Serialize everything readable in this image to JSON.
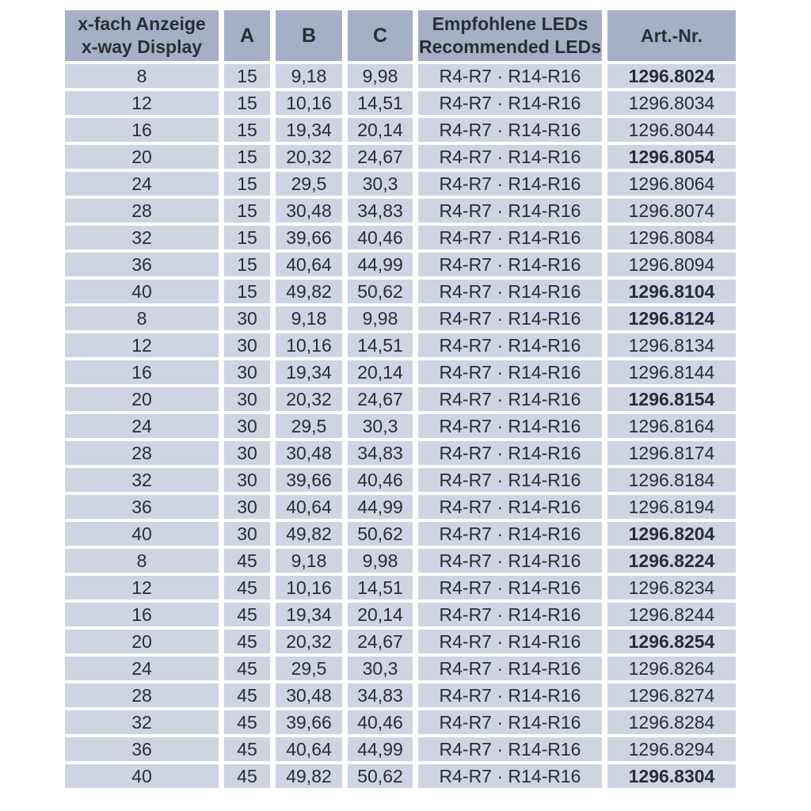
{
  "colors": {
    "page_bg": "#ffffff",
    "header_bg": "#a5b0c7",
    "row_bg": "#ced4e2",
    "text": "#2a2d35"
  },
  "table": {
    "header": {
      "col1_line1": "x-fach Anzeige",
      "col1_line2": "x-way Display",
      "col2": "A",
      "col3": "B",
      "col4": "C",
      "col5_line1": "Empfohlene LEDs",
      "col5_line2": "Recommended LEDs",
      "col6": "Art.-Nr."
    },
    "rows": [
      {
        "x": "8",
        "a": "15",
        "b": "9,18",
        "c": "9,98",
        "leds": "R4-R7 · R14-R16",
        "art": "1296.8024",
        "art_bold": true
      },
      {
        "x": "12",
        "a": "15",
        "b": "10,16",
        "c": "14,51",
        "leds": "R4-R7 · R14-R16",
        "art": "1296.8034",
        "art_bold": false
      },
      {
        "x": "16",
        "a": "15",
        "b": "19,34",
        "c": "20,14",
        "leds": "R4-R7 · R14-R16",
        "art": "1296.8044",
        "art_bold": false
      },
      {
        "x": "20",
        "a": "15",
        "b": "20,32",
        "c": "24,67",
        "leds": "R4-R7 · R14-R16",
        "art": "1296.8054",
        "art_bold": true
      },
      {
        "x": "24",
        "a": "15",
        "b": "29,5",
        "c": "30,3",
        "leds": "R4-R7 · R14-R16",
        "art": "1296.8064",
        "art_bold": false
      },
      {
        "x": "28",
        "a": "15",
        "b": "30,48",
        "c": "34,83",
        "leds": "R4-R7 · R14-R16",
        "art": "1296.8074",
        "art_bold": false
      },
      {
        "x": "32",
        "a": "15",
        "b": "39,66",
        "c": "40,46",
        "leds": "R4-R7 · R14-R16",
        "art": "1296.8084",
        "art_bold": false
      },
      {
        "x": "36",
        "a": "15",
        "b": "40,64",
        "c": "44,99",
        "leds": "R4-R7 · R14-R16",
        "art": "1296.8094",
        "art_bold": false
      },
      {
        "x": "40",
        "a": "15",
        "b": "49,82",
        "c": "50,62",
        "leds": "R4-R7 · R14-R16",
        "art": "1296.8104",
        "art_bold": true
      },
      {
        "x": "8",
        "a": "30",
        "b": "9,18",
        "c": "9,98",
        "leds": "R4-R7 · R14-R16",
        "art": "1296.8124",
        "art_bold": true
      },
      {
        "x": "12",
        "a": "30",
        "b": "10,16",
        "c": "14,51",
        "leds": "R4-R7 · R14-R16",
        "art": "1296.8134",
        "art_bold": false
      },
      {
        "x": "16",
        "a": "30",
        "b": "19,34",
        "c": "20,14",
        "leds": "R4-R7 · R14-R16",
        "art": "1296.8144",
        "art_bold": false
      },
      {
        "x": "20",
        "a": "30",
        "b": "20,32",
        "c": "24,67",
        "leds": "R4-R7 · R14-R16",
        "art": "1296.8154",
        "art_bold": true
      },
      {
        "x": "24",
        "a": "30",
        "b": "29,5",
        "c": "30,3",
        "leds": "R4-R7 · R14-R16",
        "art": "1296.8164",
        "art_bold": false
      },
      {
        "x": "28",
        "a": "30",
        "b": "30,48",
        "c": "34,83",
        "leds": "R4-R7 · R14-R16",
        "art": "1296.8174",
        "art_bold": false
      },
      {
        "x": "32",
        "a": "30",
        "b": "39,66",
        "c": "40,46",
        "leds": "R4-R7 · R14-R16",
        "art": "1296.8184",
        "art_bold": false
      },
      {
        "x": "36",
        "a": "30",
        "b": "40,64",
        "c": "44,99",
        "leds": "R4-R7 · R14-R16",
        "art": "1296.8194",
        "art_bold": false
      },
      {
        "x": "40",
        "a": "30",
        "b": "49,82",
        "c": "50,62",
        "leds": "R4-R7 · R14-R16",
        "art": "1296.8204",
        "art_bold": true
      },
      {
        "x": "8",
        "a": "45",
        "b": "9,18",
        "c": "9,98",
        "leds": "R4-R7 · R14-R16",
        "art": "1296.8224",
        "art_bold": true
      },
      {
        "x": "12",
        "a": "45",
        "b": "10,16",
        "c": "14,51",
        "leds": "R4-R7 · R14-R16",
        "art": "1296.8234",
        "art_bold": false
      },
      {
        "x": "16",
        "a": "45",
        "b": "19,34",
        "c": "20,14",
        "leds": "R4-R7 · R14-R16",
        "art": "1296.8244",
        "art_bold": false
      },
      {
        "x": "20",
        "a": "45",
        "b": "20,32",
        "c": "24,67",
        "leds": "R4-R7 · R14-R16",
        "art": "1296.8254",
        "art_bold": true
      },
      {
        "x": "24",
        "a": "45",
        "b": "29,5",
        "c": "30,3",
        "leds": "R4-R7 · R14-R16",
        "art": "1296.8264",
        "art_bold": false
      },
      {
        "x": "28",
        "a": "45",
        "b": "30,48",
        "c": "34,83",
        "leds": "R4-R7 · R14-R16",
        "art": "1296.8274",
        "art_bold": false
      },
      {
        "x": "32",
        "a": "45",
        "b": "39,66",
        "c": "40,46",
        "leds": "R4-R7 · R14-R16",
        "art": "1296.8284",
        "art_bold": false
      },
      {
        "x": "36",
        "a": "45",
        "b": "40,64",
        "c": "44,99",
        "leds": "R4-R7 · R14-R16",
        "art": "1296.8294",
        "art_bold": false
      },
      {
        "x": "40",
        "a": "45",
        "b": "49,82",
        "c": "50,62",
        "leds": "R4-R7 · R14-R16",
        "art": "1296.8304",
        "art_bold": true
      }
    ]
  }
}
